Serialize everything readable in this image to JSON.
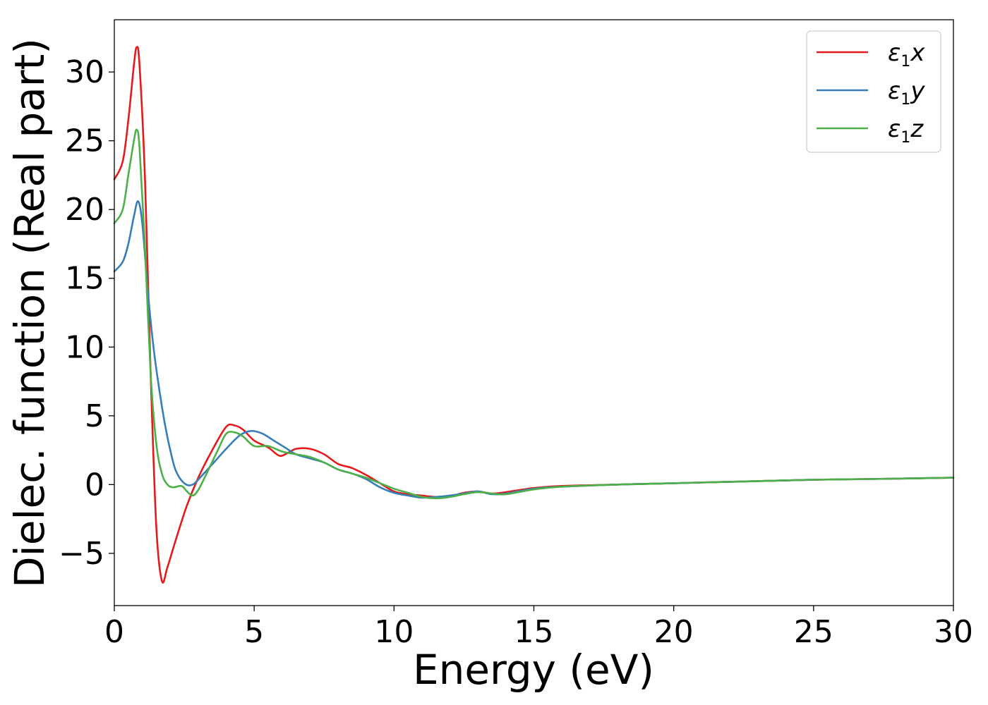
{
  "chart_data": {
    "type": "line",
    "title": "",
    "xlabel": "Energy (eV)",
    "ylabel": "Dielec. function (Real part)",
    "xlim": [
      0,
      30
    ],
    "ylim": [
      -8.8,
      33.8
    ],
    "xticks": [
      0,
      5,
      10,
      15,
      20,
      25,
      30
    ],
    "xtick_labels": [
      "0",
      "5",
      "10",
      "15",
      "20",
      "25",
      "30"
    ],
    "yticks": [
      -5,
      0,
      5,
      10,
      15,
      20,
      25,
      30
    ],
    "ytick_labels": [
      "−5",
      "0",
      "5",
      "10",
      "15",
      "20",
      "25",
      "30"
    ],
    "grid": false,
    "legend_position": "top-right",
    "series": [
      {
        "name": "ε1x",
        "label_main": "ε",
        "label_sub": "1",
        "label_var": "x",
        "color": "#e41a1c",
        "x": [
          0,
          0.3,
          0.5,
          0.7,
          0.8,
          0.9,
          1.1,
          1.3,
          1.5,
          1.7,
          1.9,
          2.2,
          2.6,
          3.0,
          3.5,
          4.0,
          4.3,
          4.6,
          5.0,
          5.5,
          5.9,
          6.2,
          6.5,
          7.0,
          7.5,
          8.0,
          8.5,
          9.0,
          9.5,
          10.0,
          10.5,
          11.0,
          11.5,
          12.0,
          12.5,
          13.0,
          13.5,
          14.0,
          15.0,
          16.0,
          18.0,
          20.0,
          22.0,
          25.0,
          27.0,
          30.0
        ],
        "y": [
          22.2,
          23.5,
          26.5,
          30.5,
          31.8,
          30.5,
          22.0,
          8.0,
          -3.0,
          -7.0,
          -6.0,
          -4.0,
          -1.5,
          0.5,
          2.5,
          4.2,
          4.3,
          4.0,
          3.2,
          2.7,
          2.1,
          2.3,
          2.6,
          2.6,
          2.2,
          1.5,
          1.2,
          0.7,
          0.1,
          -0.5,
          -0.7,
          -0.8,
          -0.9,
          -0.85,
          -0.6,
          -0.5,
          -0.65,
          -0.55,
          -0.25,
          -0.1,
          0.0,
          0.1,
          0.2,
          0.35,
          0.4,
          0.5
        ]
      },
      {
        "name": "ε1y",
        "label_main": "ε",
        "label_sub": "1",
        "label_var": "y",
        "color": "#377eb8",
        "x": [
          0,
          0.3,
          0.5,
          0.7,
          0.85,
          1.0,
          1.2,
          1.4,
          1.6,
          1.8,
          2.0,
          2.2,
          2.5,
          2.8,
          3.2,
          3.6,
          4.0,
          4.5,
          4.9,
          5.3,
          5.7,
          6.1,
          6.5,
          7.0,
          7.5,
          8.0,
          8.5,
          9.0,
          9.5,
          10.0,
          10.5,
          11.0,
          11.5,
          12.0,
          12.5,
          13.0,
          13.5,
          14.0,
          15.0,
          16.0,
          18.0,
          20.0,
          22.0,
          25.0,
          27.0,
          30.0
        ],
        "y": [
          15.5,
          16.2,
          17.5,
          19.5,
          20.6,
          19.0,
          14.0,
          10.0,
          7.0,
          4.5,
          2.5,
          1.0,
          0.1,
          0.0,
          0.8,
          1.7,
          2.6,
          3.6,
          3.9,
          3.7,
          3.2,
          2.7,
          2.2,
          1.9,
          1.6,
          1.1,
          0.8,
          0.4,
          -0.2,
          -0.6,
          -0.8,
          -0.95,
          -0.9,
          -0.8,
          -0.65,
          -0.5,
          -0.7,
          -0.65,
          -0.3,
          -0.15,
          0.0,
          0.1,
          0.2,
          0.35,
          0.4,
          0.5
        ]
      },
      {
        "name": "ε1z",
        "label_main": "ε",
        "label_sub": "1",
        "label_var": "z",
        "color": "#4daf4a",
        "x": [
          0,
          0.3,
          0.5,
          0.7,
          0.8,
          0.9,
          1.1,
          1.3,
          1.5,
          1.7,
          1.9,
          2.1,
          2.4,
          2.6,
          2.8,
          3.0,
          3.3,
          3.7,
          4.0,
          4.3,
          4.6,
          5.0,
          5.5,
          6.0,
          6.5,
          7.0,
          7.5,
          8.0,
          8.5,
          9.0,
          9.5,
          10.0,
          10.5,
          11.0,
          11.5,
          12.0,
          12.5,
          13.0,
          13.5,
          14.0,
          15.0,
          16.0,
          18.0,
          20.0,
          22.0,
          25.0,
          27.0,
          30.0
        ],
        "y": [
          19.0,
          20.0,
          22.5,
          25.0,
          25.8,
          24.5,
          17.0,
          8.0,
          3.0,
          0.8,
          0.0,
          -0.2,
          -0.1,
          -0.5,
          -0.8,
          -0.4,
          0.8,
          2.5,
          3.7,
          3.8,
          3.5,
          2.8,
          2.8,
          2.4,
          2.2,
          2.0,
          1.6,
          1.1,
          0.8,
          0.5,
          0.1,
          -0.3,
          -0.6,
          -0.9,
          -1.0,
          -0.9,
          -0.7,
          -0.55,
          -0.65,
          -0.7,
          -0.35,
          -0.15,
          0.0,
          0.1,
          0.2,
          0.35,
          0.4,
          0.5
        ]
      }
    ]
  }
}
